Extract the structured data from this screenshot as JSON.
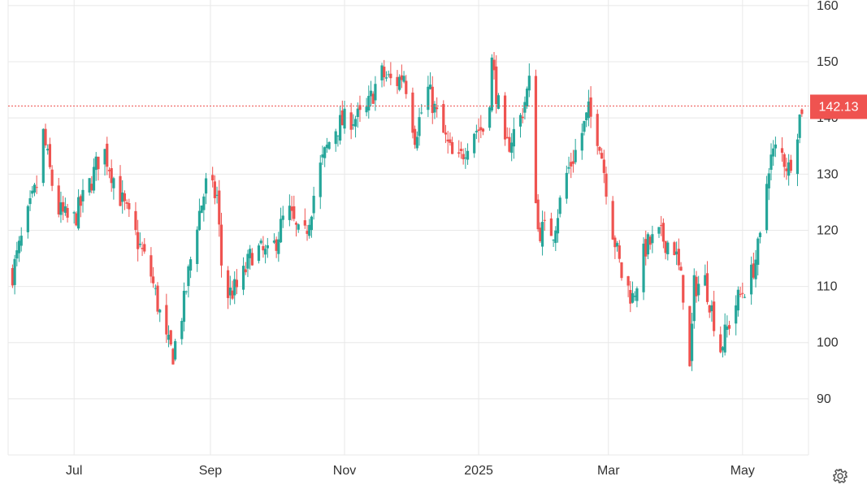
{
  "chart_data": {
    "type": "candlestick",
    "x_tick_labels": [
      "Jul",
      "Sep",
      "Nov",
      "2025",
      "Mar",
      "May"
    ],
    "y_tick_labels": [
      "160",
      "150",
      "140",
      "130",
      "120",
      "110",
      "100",
      "90"
    ],
    "y_ticks": [
      160,
      150,
      140,
      130,
      120,
      110,
      100,
      90
    ],
    "ylim": [
      80,
      161
    ],
    "x_range": [
      "2024-06-01",
      "2025-05-31"
    ],
    "grid": true,
    "current_price": {
      "value": 142.13,
      "label": "142.13"
    },
    "anchors": [
      [
        "2024-06-02",
        111
      ],
      [
        "2024-06-09",
        121
      ],
      [
        "2024-06-14",
        128
      ],
      [
        "2024-06-17",
        137
      ],
      [
        "2024-06-23",
        124
      ],
      [
        "2024-06-30",
        121
      ],
      [
        "2024-07-09",
        129
      ],
      [
        "2024-07-14",
        135
      ],
      [
        "2024-07-21",
        127
      ],
      [
        "2024-07-28",
        120
      ],
      [
        "2024-08-05",
        112
      ],
      [
        "2024-08-12",
        100
      ],
      [
        "2024-08-15",
        98
      ],
      [
        "2024-08-20",
        107
      ],
      [
        "2024-08-25",
        120
      ],
      [
        "2024-08-30",
        128
      ],
      [
        "2024-09-04",
        126
      ],
      [
        "2024-09-07",
        108
      ],
      [
        "2024-09-14",
        110
      ],
      [
        "2024-09-21",
        117
      ],
      [
        "2024-09-28",
        115
      ],
      [
        "2024-10-06",
        124
      ],
      [
        "2024-10-13",
        117
      ],
      [
        "2024-10-20",
        130
      ],
      [
        "2024-10-27",
        138
      ],
      [
        "2024-11-03",
        140
      ],
      [
        "2024-11-10",
        140
      ],
      [
        "2024-11-17",
        148
      ],
      [
        "2024-11-24",
        146
      ],
      [
        "2024-11-28",
        148
      ],
      [
        "2024-12-03",
        137
      ],
      [
        "2024-12-09",
        145
      ],
      [
        "2024-12-15",
        138
      ],
      [
        "2024-12-22",
        131
      ],
      [
        "2024-12-29",
        138
      ],
      [
        "2025-01-05",
        138
      ],
      [
        "2025-01-07",
        150
      ],
      [
        "2025-01-13",
        134
      ],
      [
        "2025-01-20",
        140
      ],
      [
        "2025-01-24",
        146
      ],
      [
        "2025-01-28",
        120
      ],
      [
        "2025-02-04",
        120
      ],
      [
        "2025-02-10",
        130
      ],
      [
        "2025-02-15",
        135
      ],
      [
        "2025-02-20",
        141
      ],
      [
        "2025-02-25",
        136
      ],
      [
        "2025-03-03",
        120
      ],
      [
        "2025-03-07",
        112
      ],
      [
        "2025-03-12",
        108
      ],
      [
        "2025-03-18",
        117
      ],
      [
        "2025-03-24",
        119
      ],
      [
        "2025-03-31",
        117
      ],
      [
        "2025-04-04",
        109
      ],
      [
        "2025-04-07",
        95
      ],
      [
        "2025-04-09",
        110
      ],
      [
        "2025-04-14",
        111
      ],
      [
        "2025-04-21",
        99
      ],
      [
        "2025-04-28",
        107
      ],
      [
        "2025-05-05",
        112
      ],
      [
        "2025-05-09",
        118
      ],
      [
        "2025-05-13",
        132
      ],
      [
        "2025-05-17",
        135
      ],
      [
        "2025-05-22",
        131
      ],
      [
        "2025-05-28",
        142
      ]
    ]
  },
  "settings_icon": "gear-icon",
  "colors": {
    "up": "#26a69a",
    "down": "#ef5350",
    "price_line": "#ef5350",
    "price_label_bg": "#ef5350",
    "grid": "#e8e8e8",
    "axis_text": "#333333"
  }
}
